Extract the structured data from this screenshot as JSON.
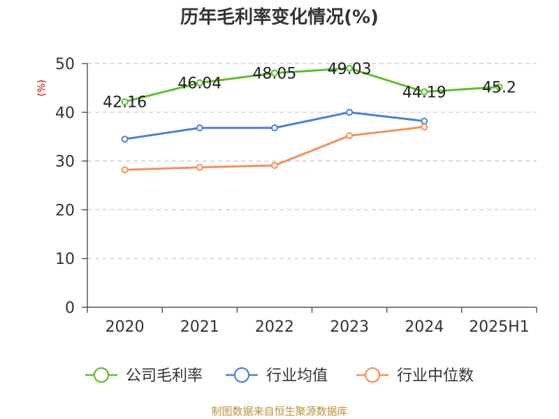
{
  "chart_data": {
    "type": "line",
    "title": "历年毛利率变化情况(%)",
    "ylabel": "(%)",
    "categories": [
      "2020",
      "2021",
      "2022",
      "2023",
      "2024",
      "2025H1"
    ],
    "ylim": [
      0,
      50
    ],
    "yticks": [
      "0",
      "10",
      "20",
      "30",
      "40",
      "50"
    ],
    "grid": true,
    "legend_position": "bottom",
    "series": [
      {
        "name": "公司毛利率",
        "color": "#5cbf2a",
        "values": [
          42.16,
          46.04,
          48.05,
          49.03,
          44.19,
          45.2
        ],
        "labels": [
          "42.16",
          "46.04",
          "48.05",
          "49.03",
          "44.19",
          "45.2"
        ]
      },
      {
        "name": "行业均值",
        "color": "#4a7fd6",
        "values": [
          34.5,
          36.8,
          36.8,
          40.0,
          38.2,
          null
        ]
      },
      {
        "name": "行业中位数",
        "color": "#f5905a",
        "values": [
          28.2,
          28.7,
          29.1,
          35.2,
          37.0,
          null
        ]
      }
    ],
    "source": "制图数据来自恒生聚源数据库"
  }
}
